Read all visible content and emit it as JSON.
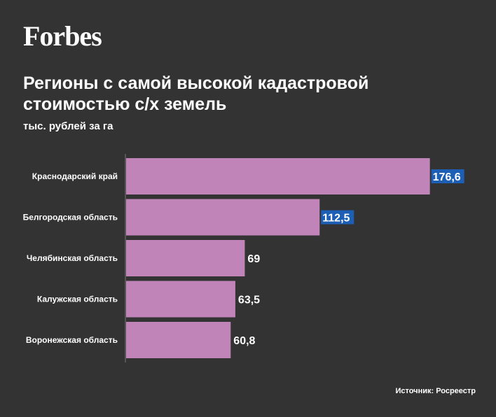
{
  "brand": {
    "logo": "Forbes"
  },
  "header": {
    "title": "Регионы с самой высокой кадастровой стоимостью с/х земель",
    "subtitle": "тыс. рублей за га"
  },
  "footer": {
    "source": "Источник: Росреестр"
  },
  "colors": {
    "background": "#333333",
    "bar": "#c084b8",
    "highlight": "#1c5fb5",
    "text": "#ffffff",
    "axis": "#777777"
  },
  "chart_data": {
    "type": "bar",
    "orientation": "horizontal",
    "categories": [
      "Краснодарский край",
      "Белгородская область",
      "Челябинская область",
      "Калужская область",
      "Воронежская область"
    ],
    "values": [
      176.6,
      112.5,
      69,
      63.5,
      60.8
    ],
    "value_labels": [
      "176,6",
      "112,5",
      "69",
      "63,5",
      "60,8"
    ],
    "highlighted_labels": [
      true,
      true,
      false,
      false,
      false
    ],
    "xlim": [
      0,
      180
    ],
    "grid": false,
    "legend": "none"
  }
}
